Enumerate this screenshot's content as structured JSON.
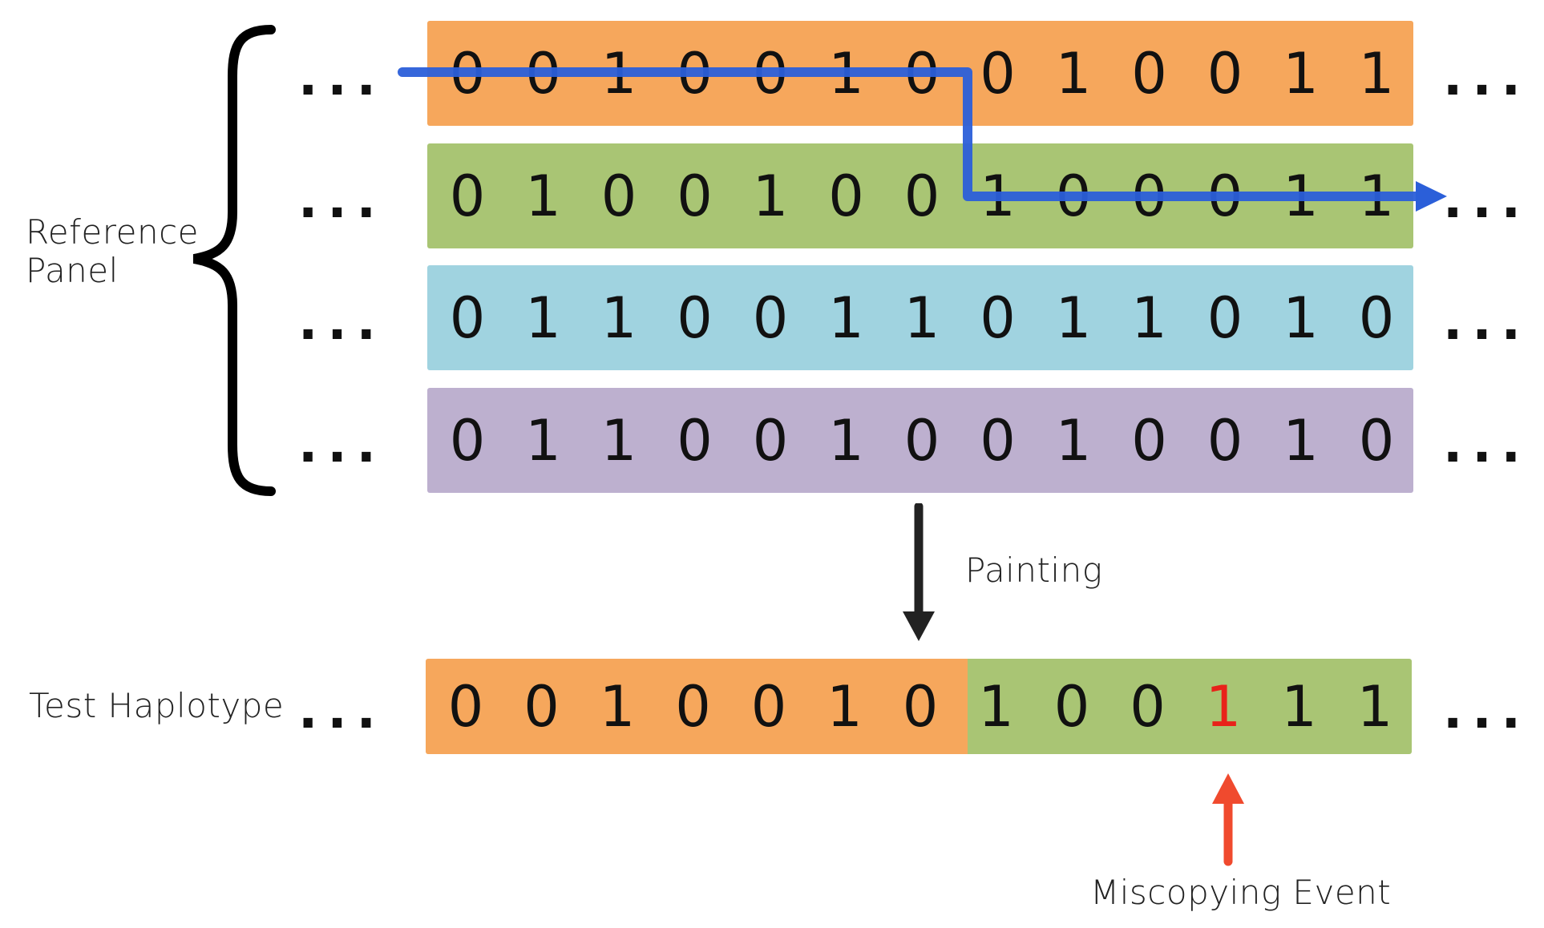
{
  "labels": {
    "reference_panel_line1": "Reference",
    "reference_panel_line2": "Panel",
    "test_haplotype": "Test Haplotype",
    "painting": "Painting",
    "miscopying_event": "Miscopying Event",
    "ellipsis": "..."
  },
  "colors": {
    "orange": "#F6A75C",
    "green": "#A9C574",
    "blue": "#A0D3E0",
    "purple": "#BDB0CF",
    "path_blue": "#2B5FD9",
    "painting_arrow": "#222222",
    "miscopy_red": "#F04A2E",
    "miscopy_digit": "#E8221A"
  },
  "reference_panel": [
    {
      "color": "orange",
      "bits": [
        "0",
        "0",
        "1",
        "0",
        "0",
        "1",
        "0",
        "0",
        "1",
        "0",
        "0",
        "1",
        "1"
      ]
    },
    {
      "color": "green",
      "bits": [
        "0",
        "1",
        "0",
        "0",
        "1",
        "0",
        "0",
        "1",
        "0",
        "0",
        "0",
        "1",
        "1"
      ]
    },
    {
      "color": "blue",
      "bits": [
        "0",
        "1",
        "1",
        "0",
        "0",
        "1",
        "1",
        "0",
        "1",
        "1",
        "0",
        "1",
        "0"
      ]
    },
    {
      "color": "purple",
      "bits": [
        "0",
        "1",
        "1",
        "0",
        "0",
        "1",
        "0",
        "0",
        "1",
        "0",
        "0",
        "1",
        "0"
      ]
    }
  ],
  "test_haplotype": {
    "bits": [
      "0",
      "0",
      "1",
      "0",
      "0",
      "1",
      "0",
      "1",
      "0",
      "0",
      "1",
      "1",
      "1"
    ],
    "segments": [
      {
        "color": "orange",
        "from_site": 0,
        "to_site": 6
      },
      {
        "color": "green",
        "from_site": 7,
        "to_site": 12
      }
    ],
    "miscopy_site": 10
  },
  "copy_path": {
    "switch_after_site": 6,
    "from_row": 0,
    "to_row": 1
  }
}
